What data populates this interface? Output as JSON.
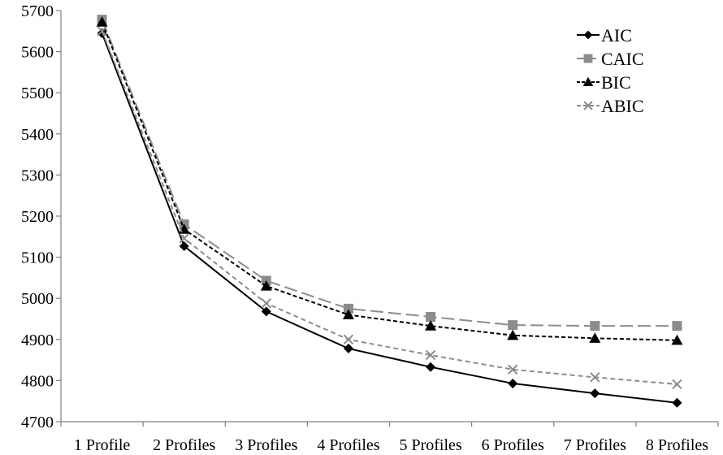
{
  "chart_data": {
    "type": "line",
    "title": "",
    "xlabel": "",
    "ylabel": "",
    "categories": [
      "1 Profile",
      "2 Profiles",
      "3 Profiles",
      "4 Profiles",
      "5 Profiles",
      "6 Profiles",
      "7 Profiles",
      "8 Profiles"
    ],
    "ylim": [
      4700,
      5700
    ],
    "yticks": [
      4700,
      4800,
      4900,
      5000,
      5100,
      5200,
      5300,
      5400,
      5500,
      5600,
      5700
    ],
    "ytick_labels": [
      "4700",
      "4800",
      "4900",
      "5000",
      "5100",
      "5200",
      "5300",
      "5400",
      "5500",
      "5600",
      "5700"
    ],
    "grid": false,
    "legend_position": "top-right",
    "series": [
      {
        "name": "AIC",
        "values": [
          5645,
          5127,
          4968,
          4878,
          4833,
          4793,
          4769,
          4746
        ],
        "color": "#000000",
        "dash": "solid",
        "marker": "diamond"
      },
      {
        "name": "CAIC",
        "values": [
          5678,
          5180,
          5043,
          4975,
          4955,
          4935,
          4933,
          4933
        ],
        "color": "#8c8c8c",
        "dash": "long-dash",
        "marker": "square"
      },
      {
        "name": "BIC",
        "values": [
          5672,
          5168,
          5030,
          4960,
          4933,
          4910,
          4903,
          4898
        ],
        "color": "#000000",
        "dash": "short-dash",
        "marker": "triangle"
      },
      {
        "name": "ABIC",
        "values": [
          5650,
          5146,
          4988,
          4900,
          4862,
          4827,
          4808,
          4791
        ],
        "color": "#8c8c8c",
        "dash": "dash",
        "marker": "x"
      }
    ]
  }
}
